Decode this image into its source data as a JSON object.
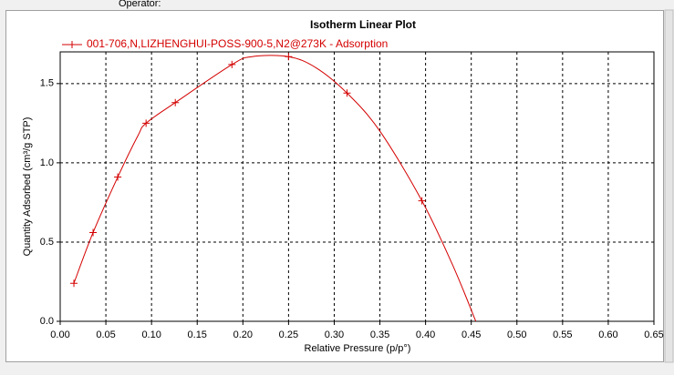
{
  "header": {
    "text": "Operator:"
  },
  "chart_data": {
    "type": "line",
    "title": "Isotherm Linear Plot",
    "x_label": "Relative Pressure (p/p°)",
    "y_label": "Quantity Adsorbed (cm³/g STP)",
    "series": [
      {
        "name": "001-706,N,LIZHENGHUI-POSS-900-5,N2@273K - Adsorption",
        "color": "#d40000",
        "x": [
          0.015,
          0.036,
          0.063,
          0.094,
          0.126,
          0.188,
          0.25,
          0.314,
          0.396
        ],
        "values": [
          0.24,
          0.56,
          0.91,
          1.25,
          1.38,
          1.62,
          1.67,
          1.44,
          0.76
        ]
      }
    ],
    "fit": {
      "x": [
        0.015,
        0.036,
        0.063,
        0.085,
        0.094,
        0.126,
        0.188,
        0.21,
        0.25,
        0.28,
        0.314,
        0.35,
        0.396,
        0.43,
        0.455
      ],
      "values": [
        0.24,
        0.56,
        0.91,
        1.17,
        1.25,
        1.38,
        1.62,
        1.67,
        1.67,
        1.6,
        1.44,
        1.2,
        0.76,
        0.35,
        0.0
      ]
    },
    "xlim": [
      0,
      0.65
    ],
    "ylim": [
      0,
      1.7
    ],
    "xticks": [
      {
        "value": 0,
        "label": "0.00"
      },
      {
        "value": 0.05,
        "label": "0.05"
      },
      {
        "value": 0.1,
        "label": "0.10"
      },
      {
        "value": 0.15,
        "label": "0.15"
      },
      {
        "value": 0.2,
        "label": "0.20"
      },
      {
        "value": 0.25,
        "label": "0.25"
      },
      {
        "value": 0.3,
        "label": "0.30"
      },
      {
        "value": 0.35,
        "label": "0.35"
      },
      {
        "value": 0.4,
        "label": "0.40"
      },
      {
        "value": 0.45,
        "label": "0.45"
      },
      {
        "value": 0.5,
        "label": "0.50"
      },
      {
        "value": 0.55,
        "label": "0.55"
      },
      {
        "value": 0.6,
        "label": "0.60"
      },
      {
        "value": 0.65,
        "label": "0.65"
      }
    ],
    "yticks": [
      {
        "value": 0,
        "label": "0.0"
      },
      {
        "value": 0.5,
        "label": "0.5"
      },
      {
        "value": 1,
        "label": "1.0"
      },
      {
        "value": 1.5,
        "label": "1.5"
      }
    ],
    "grid": true
  }
}
